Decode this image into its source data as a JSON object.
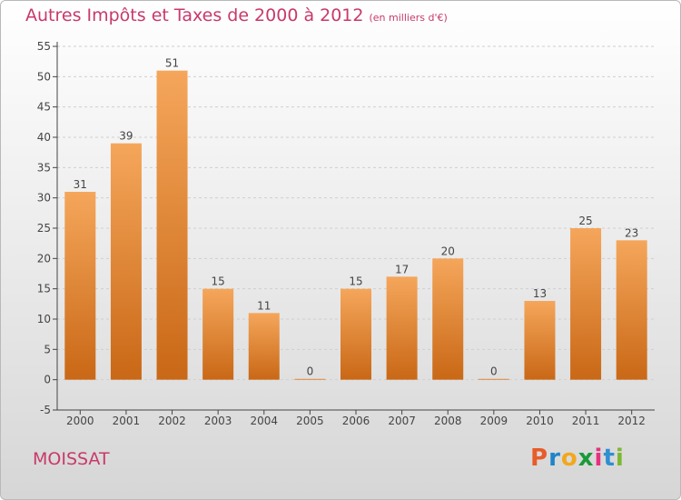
{
  "title": "Autres Impôts et Taxes de 2000 à 2012",
  "subtitle": "(en milliers d'€)",
  "place": "MOISSAT",
  "brand": {
    "text": "Proxiti",
    "letter_colors": [
      "#e85b2a",
      "#1f84c8",
      "#f2a81d",
      "#1a9a3a",
      "#e6317f",
      "#2f8fd1",
      "#7cb82f"
    ]
  },
  "colors": {
    "bar_top": "#f5a65b",
    "bar_bottom": "#c96816",
    "title": "#c8396c",
    "axis": "#444444",
    "grid": "#cfcfcf"
  },
  "chart_data": {
    "type": "bar",
    "categories": [
      "2000",
      "2001",
      "2002",
      "2003",
      "2004",
      "2005",
      "2006",
      "2007",
      "2008",
      "2009",
      "2010",
      "2011",
      "2012"
    ],
    "values": [
      31,
      39,
      51,
      15,
      11,
      0,
      15,
      17,
      20,
      0,
      13,
      25,
      23
    ],
    "data_labels": [
      "31",
      "39",
      "51",
      "15",
      "11",
      "0",
      "15",
      "17",
      "20",
      "0",
      "13",
      "25",
      "23"
    ],
    "yticks": [
      "-5",
      "0",
      "5",
      "10",
      "15",
      "20",
      "25",
      "30",
      "35",
      "40",
      "45",
      "50",
      "55"
    ],
    "ylim": [
      -5,
      55
    ],
    "grid": "horizontal dashed"
  }
}
